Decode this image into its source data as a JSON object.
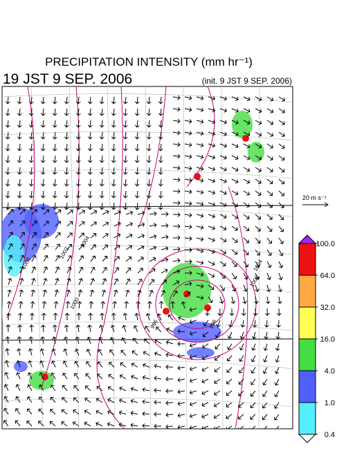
{
  "header": {
    "title": "PRECIPITATION INTENSITY (mm hr⁻¹)",
    "valid_time": "19 JST 9 SEP. 2006",
    "init_time": "(init. 9 JST 9 SEP. 2006)"
  },
  "wind_scale": {
    "label": "20 m s⁻¹"
  },
  "contour_labels": [
    "1000",
    "1002",
    "1004",
    "1000",
    "996",
    "1004",
    "1006",
    "996"
  ],
  "colorbar": {
    "levels": [
      {
        "value": 0.4,
        "label": "0.4"
      },
      {
        "value": 1.0,
        "label": "1.0"
      },
      {
        "value": 4.0,
        "label": "4.0"
      },
      {
        "value": 16.0,
        "label": "16.0"
      },
      {
        "value": 32.0,
        "label": "32.0"
      },
      {
        "value": 64.0,
        "label": "64.0"
      },
      {
        "value": 100.0,
        "label": "100.0"
      }
    ],
    "colors": [
      "#55eeff",
      "#5060ff",
      "#44dd44",
      "#ffff55",
      "#ffaa44",
      "#ee1111"
    ],
    "over_color": "#aa22ff",
    "under_color": "#ffffff"
  }
}
